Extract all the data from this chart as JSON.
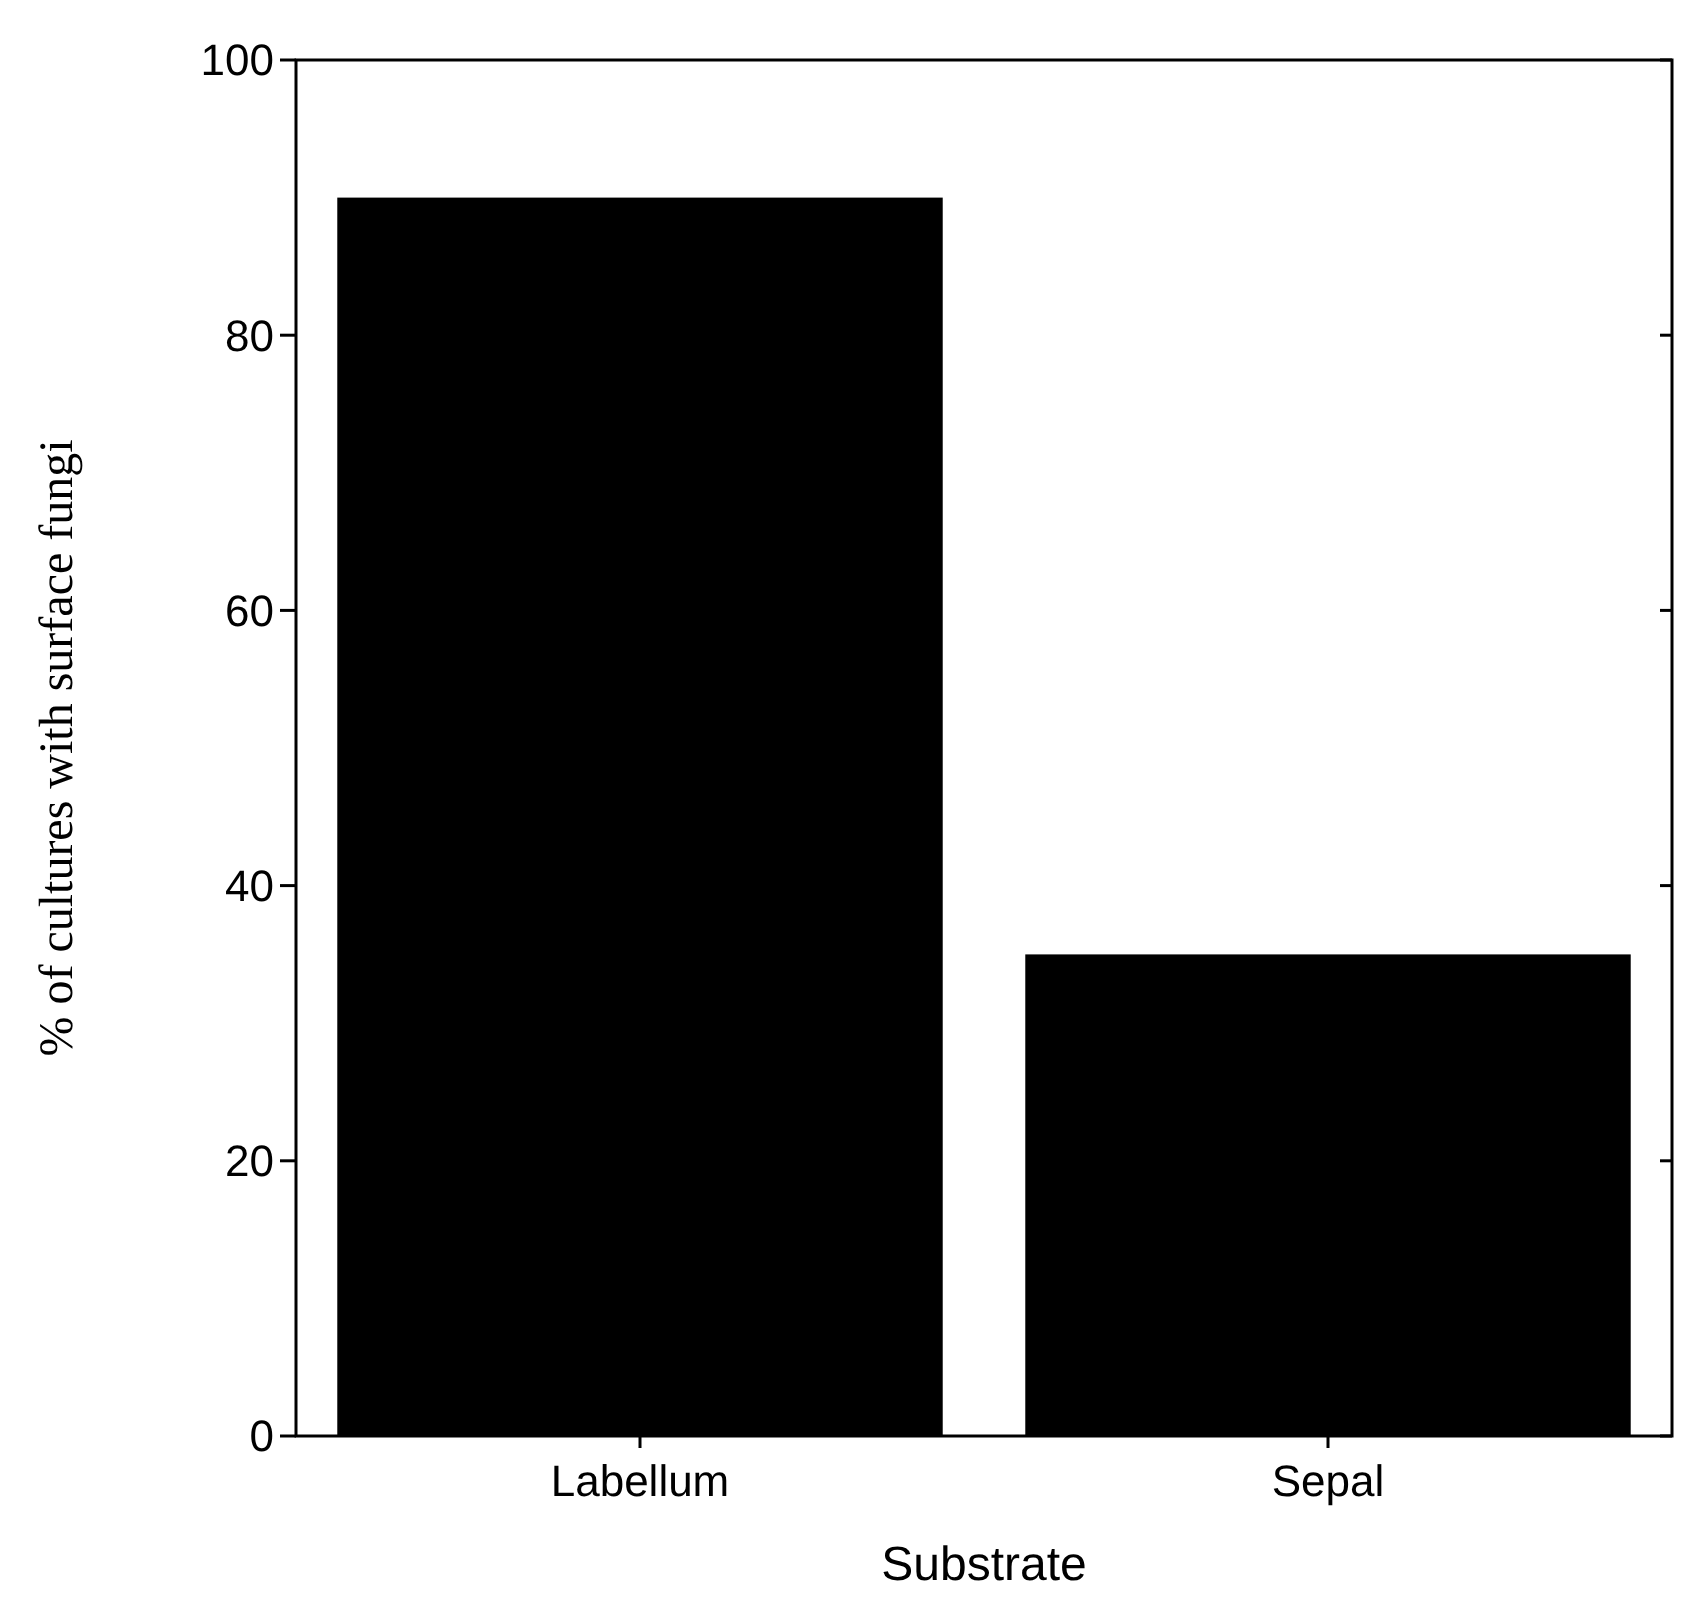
{
  "chart_data": {
    "type": "bar",
    "xlabel": "Substrate",
    "ylabel": "% of cultures with surface fungi",
    "categories": [
      "Labellum",
      "Sepal"
    ],
    "values": [
      90,
      35
    ],
    "color": "#000000",
    "ylim": [
      0,
      100
    ],
    "yticks": [
      0,
      20,
      40,
      60,
      80,
      100
    ],
    "grid": false
  }
}
